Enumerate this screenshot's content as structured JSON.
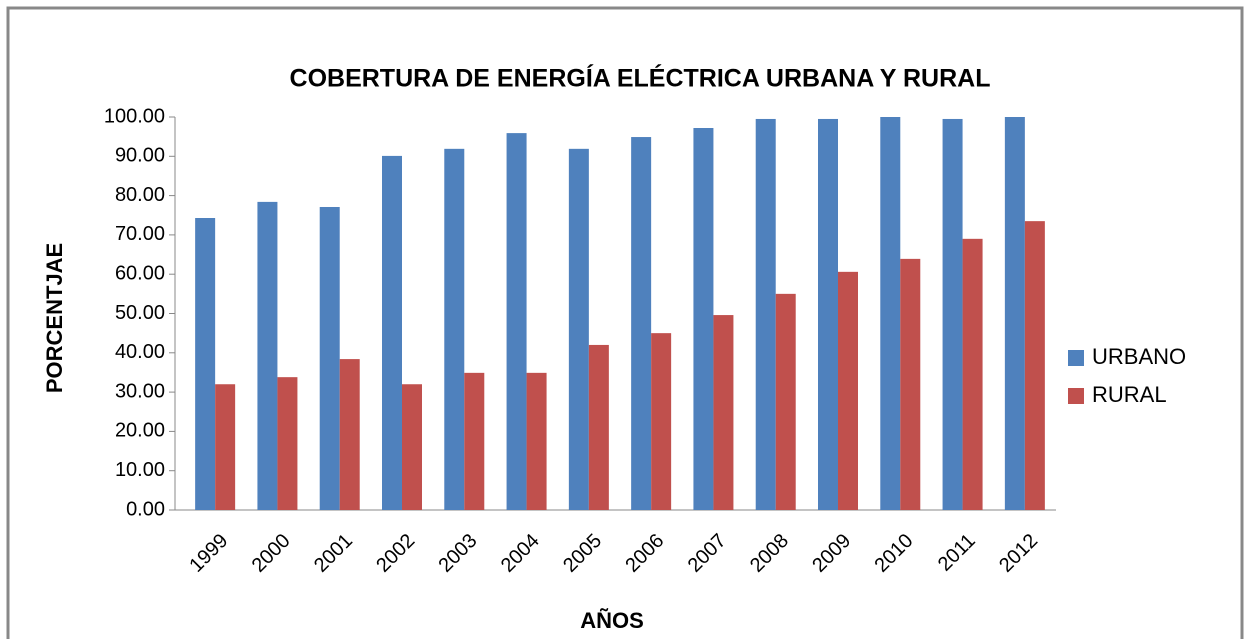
{
  "chart_data": {
    "type": "bar",
    "title": "COBERTURA DE ENERGÍA ELÉCTRICA URBANA Y RURAL",
    "x_label": "AÑOS",
    "y_label": "PORCENTJAE",
    "categories": [
      "1999",
      "2000",
      "2001",
      "2002",
      "2003",
      "2004",
      "2005",
      "2006",
      "2007",
      "2008",
      "2009",
      "2010",
      "2011",
      "2012"
    ],
    "series": [
      {
        "name": "URBANO",
        "color": "#4f81bd",
        "values": [
          74.3,
          78.4,
          77.1,
          90.1,
          91.9,
          95.9,
          91.9,
          94.9,
          97.2,
          99.5,
          99.5,
          100,
          99.5,
          100
        ]
      },
      {
        "name": "RURAL",
        "color": "#c0504d",
        "values": [
          32,
          33.8,
          38.4,
          32,
          34.9,
          34.9,
          42,
          45,
          49.6,
          55,
          60.6,
          63.9,
          69,
          73.5
        ]
      }
    ],
    "ylim": [
      0,
      100
    ],
    "yticks": [
      {
        "value": 0,
        "label": "0.00"
      },
      {
        "value": 10,
        "label": "10.00"
      },
      {
        "value": 20,
        "label": "20.00"
      },
      {
        "value": 30,
        "label": "30.00"
      },
      {
        "value": 40,
        "label": "40.00"
      },
      {
        "value": 50,
        "label": "50.00"
      },
      {
        "value": 60,
        "label": "60.00"
      },
      {
        "value": 70,
        "label": "70.00"
      },
      {
        "value": 80,
        "label": "80.00"
      },
      {
        "value": 90,
        "label": "90.00"
      },
      {
        "value": 100,
        "label": "100.00"
      }
    ],
    "grid": false,
    "legend": "right"
  }
}
